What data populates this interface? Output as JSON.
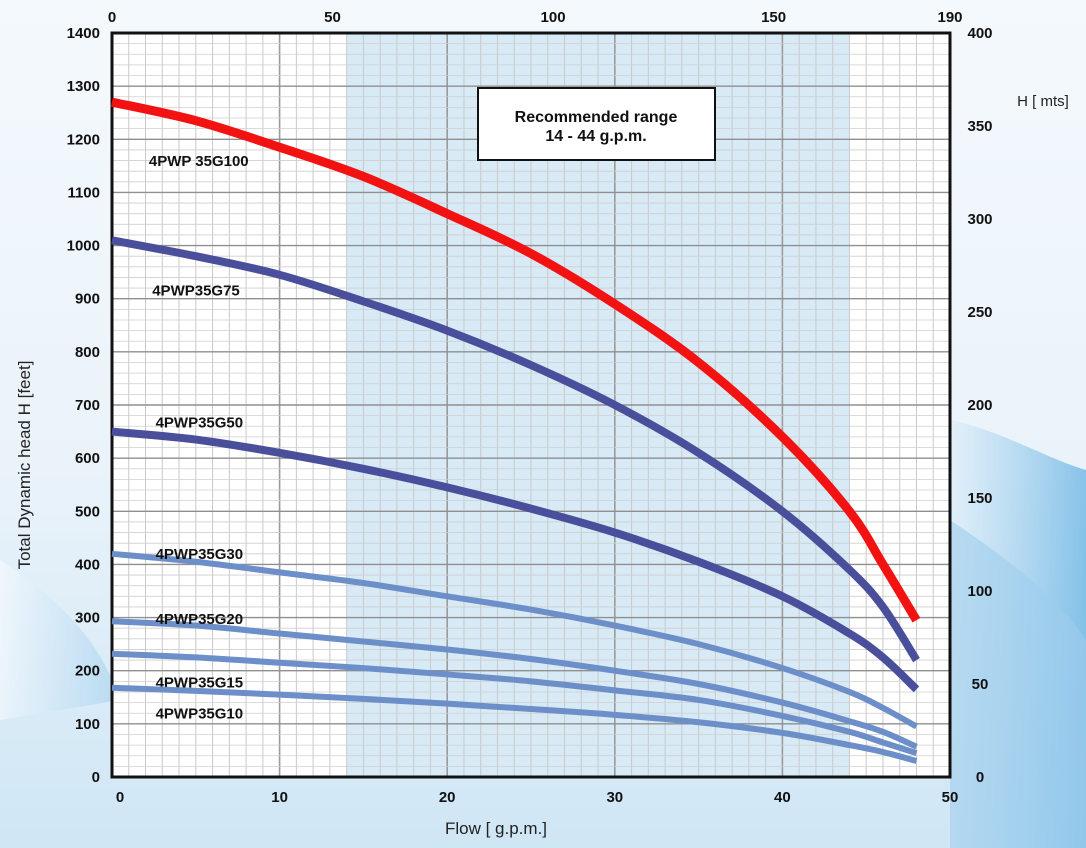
{
  "chart_data": {
    "type": "line",
    "title": "",
    "xlabel": "Flow [ g.p.m.]",
    "ylabel": "Total Dynamic head H [feet]",
    "y2label": "H [ mts]",
    "xlim": [
      0,
      50
    ],
    "ylim": [
      0,
      1400
    ],
    "x_ticks": [
      0,
      10,
      20,
      30,
      40,
      50
    ],
    "y_ticks": [
      0,
      100,
      200,
      300,
      400,
      500,
      600,
      700,
      800,
      900,
      1000,
      1100,
      1200,
      1300,
      1400
    ],
    "x2_ticks": [
      0,
      50,
      100,
      150,
      190
    ],
    "x2lim": [
      0,
      190
    ],
    "y2_ticks": [
      0,
      50,
      100,
      150,
      200,
      250,
      300,
      350,
      400
    ],
    "y2lim": [
      0,
      400
    ],
    "grid": true,
    "recommended_range": {
      "x": [
        14,
        44
      ],
      "text_line1": "Recommended range",
      "text_line2": "14 - 44 g.p.m.",
      "color": "#d8eaf6"
    },
    "series": [
      {
        "name": "4PWP 35G100",
        "color": "#f21212",
        "label_x": 2.2,
        "label_y": 1150,
        "x": [
          0,
          5,
          10,
          15,
          20,
          25,
          30,
          35,
          40,
          44,
          46,
          48
        ],
        "y": [
          1270,
          1235,
          1185,
          1130,
          1060,
          985,
          890,
          780,
          640,
          500,
          400,
          295
        ]
      },
      {
        "name": "4PWP35G75",
        "color": "#4a4f9c",
        "label_x": 2.4,
        "label_y": 906,
        "x": [
          0,
          5,
          10,
          15,
          20,
          25,
          30,
          35,
          40,
          44,
          46,
          48
        ],
        "y": [
          1010,
          980,
          945,
          895,
          840,
          775,
          700,
          610,
          500,
          390,
          320,
          220
        ]
      },
      {
        "name": "4PWP35G50",
        "color": "#4a4f9c",
        "label_x": 2.6,
        "label_y": 658,
        "x": [
          0,
          5,
          10,
          15,
          20,
          25,
          30,
          35,
          40,
          44,
          46,
          48
        ],
        "y": [
          650,
          635,
          610,
          580,
          545,
          505,
          460,
          405,
          340,
          270,
          225,
          165
        ]
      },
      {
        "name": "4PWP35G30",
        "color": "#6d8fc9",
        "label_x": 2.6,
        "label_y": 410,
        "x": [
          0,
          5,
          10,
          15,
          20,
          25,
          30,
          35,
          40,
          44,
          46,
          48
        ],
        "y": [
          420,
          405,
          385,
          365,
          340,
          315,
          285,
          250,
          205,
          160,
          130,
          95
        ]
      },
      {
        "name": "4PWP35G20",
        "color": "#6d8fc9",
        "label_x": 2.6,
        "label_y": 288,
        "x": [
          0,
          5,
          10,
          15,
          20,
          25,
          30,
          35,
          40,
          44,
          46,
          48
        ],
        "y": [
          293,
          285,
          270,
          255,
          240,
          222,
          200,
          175,
          140,
          105,
          85,
          57
        ]
      },
      {
        "name": "4PWP35G15",
        "color": "#6d8fc9",
        "label_x": 2.6,
        "label_y": 168,
        "x": [
          0,
          5,
          10,
          15,
          20,
          25,
          30,
          35,
          40,
          44,
          46,
          48
        ],
        "y": [
          232,
          225,
          215,
          205,
          193,
          180,
          163,
          145,
          115,
          85,
          65,
          45
        ]
      },
      {
        "name": "4PWP35G10",
        "color": "#6d8fc9",
        "label_x": 2.6,
        "label_y": 110,
        "x": [
          0,
          5,
          10,
          15,
          20,
          25,
          30,
          35,
          40,
          44,
          46,
          48
        ],
        "y": [
          168,
          162,
          155,
          147,
          138,
          128,
          117,
          103,
          83,
          60,
          47,
          30
        ]
      }
    ]
  }
}
